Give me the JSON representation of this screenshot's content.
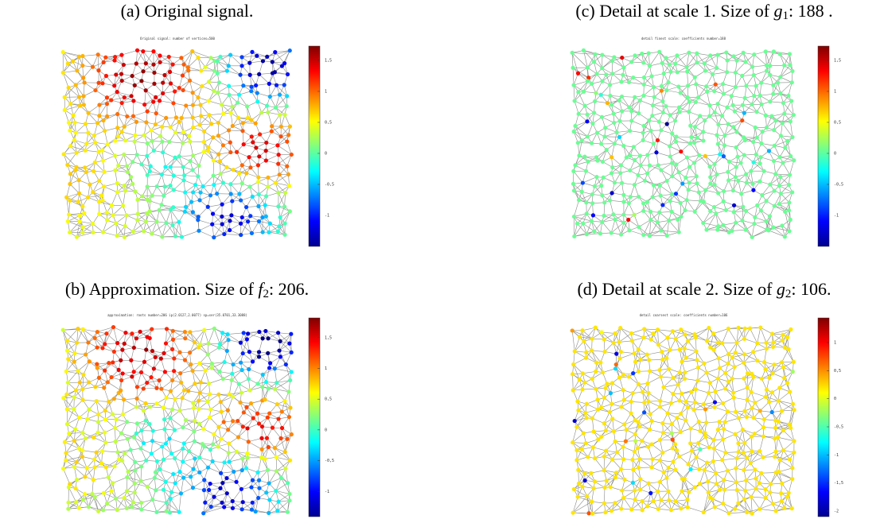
{
  "panels": [
    {
      "caption": {
        "prefix": "(a) Original signal."
      },
      "title": "Original signal: number of vertices=500",
      "colorbar": {
        "lim": [
          -1.5,
          1.73
        ],
        "ticks": [
          {
            "value": 1.5,
            "label": "1,5"
          },
          1,
          {
            "value": 0.5,
            "label": "0,5"
          },
          0,
          {
            "value": -0.5,
            "label": "-0,5"
          },
          -1
        ]
      }
    },
    {
      "caption": {
        "prefix": "(c) Detail at scale 1. Size of ",
        "symbol": "g",
        "sub": "1",
        "suffix": ": 188 ."
      },
      "title": "detail finest scale: coefficients number=188",
      "colorbar": {
        "lim": [
          -1.5,
          1.73
        ],
        "ticks": [
          {
            "value": 1.5,
            "label": "1,5"
          },
          1,
          {
            "value": 0.5,
            "label": "0,5"
          },
          0,
          {
            "value": -0.5,
            "label": "-0,5"
          },
          -1
        ]
      }
    },
    {
      "caption": {
        "prefix": "(b) Approximation. Size of ",
        "symbol": "f",
        "sub": "2",
        "suffix": ": 206."
      },
      "title": "approximation: roots number=206 ip(2.0127,2.0077) sp=ser(35.0701,33.3088)",
      "colorbar": {
        "lim": [
          -1.41,
          1.82
        ],
        "ticks": [
          {
            "value": 1.5,
            "label": "1,5"
          },
          1,
          {
            "value": 0.5,
            "label": "0,5"
          },
          0,
          {
            "value": -0.5,
            "label": "-0,5"
          },
          -1
        ]
      }
    },
    {
      "caption": {
        "prefix": "(d) Detail at scale 2. Size of ",
        "symbol": "g",
        "sub": "2",
        "suffix": ": 106."
      },
      "title": "detail coarsest scale: coefficients number=106",
      "colorbar": {
        "lim": [
          -2.1,
          1.44
        ],
        "ticks": [
          1,
          {
            "value": 0.5,
            "label": "0,5"
          },
          0,
          {
            "value": -0.5,
            "label": "-0,5"
          },
          -1,
          {
            "value": -1.5,
            "label": "-1,5"
          },
          -2
        ]
      }
    }
  ]
}
